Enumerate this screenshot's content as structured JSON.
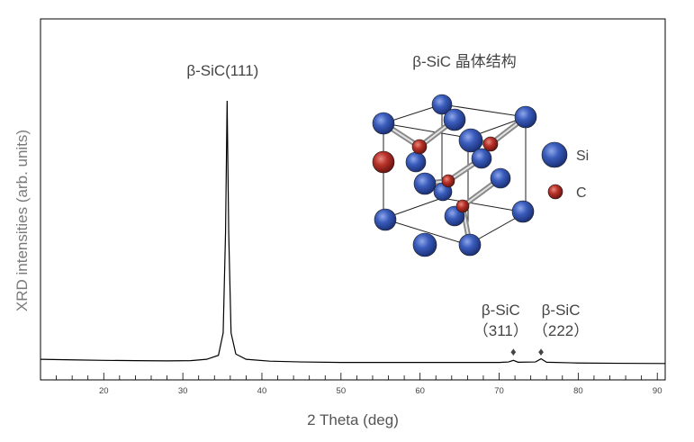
{
  "chart_data": {
    "type": "line",
    "title": "",
    "xlabel": "2 Theta (deg)",
    "ylabel": "XRD intensities (arb. units)",
    "xlim": [
      12,
      91
    ],
    "ylim": [
      0,
      100
    ],
    "x_ticks": [
      20,
      30,
      40,
      50,
      60,
      70,
      80,
      90
    ],
    "grid": false,
    "series": [
      {
        "x": [
          12,
          16,
          20,
          24,
          28,
          31,
          33,
          34.5,
          35.1,
          35.4,
          35.6,
          35.8,
          36.1,
          36.7,
          38,
          41,
          45,
          50,
          55,
          60,
          65,
          70,
          71.2,
          71.8,
          72.4,
          74.6,
          75.3,
          76,
          80,
          85,
          91
        ],
        "y": [
          2.0,
          1.8,
          1.6,
          1.5,
          1.4,
          1.5,
          2.0,
          3.5,
          12,
          50,
          100,
          50,
          12,
          4,
          2.0,
          1.3,
          1.0,
          0.8,
          0.8,
          0.8,
          0.8,
          0.8,
          1.0,
          1.6,
          0.9,
          1.0,
          2.2,
          0.9,
          0.6,
          0.5,
          0.4
        ]
      }
    ],
    "annotations": [
      {
        "id": "p111",
        "text": "β-SiC(111)",
        "x": 35.6
      },
      {
        "id": "p311",
        "text": "β-SiC",
        "text2": "（311）",
        "x": 71.8,
        "marker": "♦"
      },
      {
        "id": "p222",
        "text": "β-SiC",
        "text2": "（222）",
        "x": 75.3,
        "marker": "♦"
      }
    ]
  },
  "inset": {
    "title": "β-SiC 晶体结构",
    "legend": [
      {
        "label": "Si",
        "color": "#2f4fa8"
      },
      {
        "label": "C",
        "color": "#b42a24"
      }
    ]
  }
}
